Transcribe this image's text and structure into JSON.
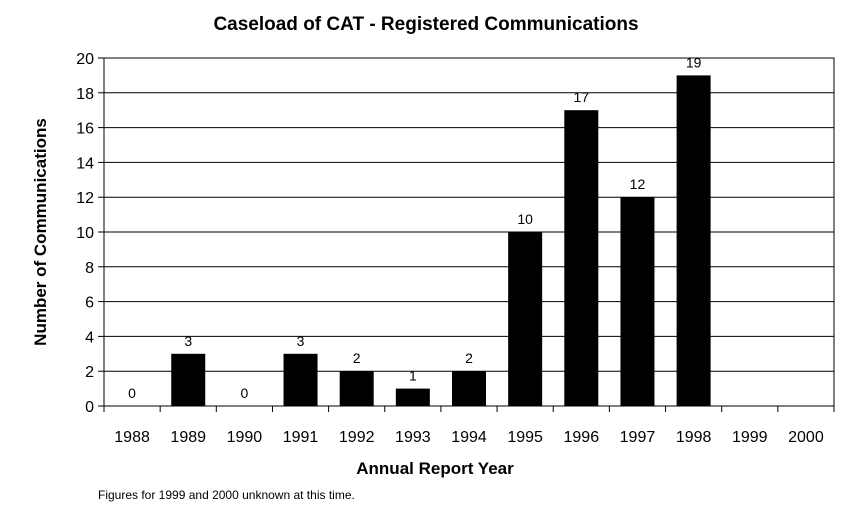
{
  "chart_data": {
    "type": "bar",
    "title": "Caseload of CAT - Registered Communications",
    "xlabel": "Annual Report Year",
    "ylabel": "Number of Communications",
    "categories": [
      "1988",
      "1989",
      "1990",
      "1991",
      "1992",
      "1993",
      "1994",
      "1995",
      "1996",
      "1997",
      "1998",
      "1999",
      "2000"
    ],
    "values": [
      0,
      3,
      0,
      3,
      2,
      1,
      2,
      10,
      17,
      12,
      19,
      null,
      null
    ],
    "data_labels": [
      "0",
      "3",
      "0",
      "3",
      "2",
      "1",
      "2",
      "10",
      "17",
      "12",
      "19",
      "",
      ""
    ],
    "ylim": [
      0,
      20
    ],
    "yticks": [
      "0",
      "2",
      "4",
      "6",
      "8",
      "10",
      "12",
      "14",
      "16",
      "18",
      "20"
    ],
    "grid": true,
    "legend": "none",
    "bar_color": "#000000",
    "grid_color": "#000000"
  },
  "footnote": "Figures for 1999 and 2000 unknown at this time."
}
